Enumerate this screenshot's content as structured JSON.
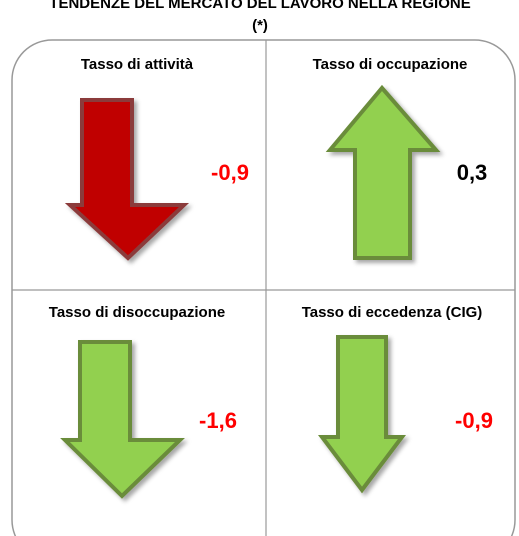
{
  "header": {
    "title": "TENDENZE DEL MERCATO DEL LAVORO NELLA REGIONE",
    "note": "(*)"
  },
  "cells": [
    {
      "title": "Tasso di attività",
      "value": "-0,9"
    },
    {
      "title": "Tasso di occupazione",
      "value": "0,3"
    },
    {
      "title": "Tasso di disoccupazione",
      "value": "-1,6"
    },
    {
      "title": "Tasso di eccedenza (CIG)",
      "value": "-0,9"
    }
  ]
}
